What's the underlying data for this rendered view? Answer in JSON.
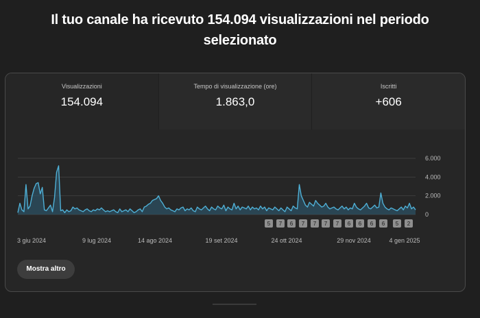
{
  "headline": "Il tuo canale ha ricevuto 154.094 visualizzazioni nel periodo selezionato",
  "metrics": [
    {
      "label": "Visualizzazioni",
      "value": "154.094"
    },
    {
      "label": "Tempo di visualizzazione (ore)",
      "value": "1.863,0"
    },
    {
      "label": "Iscritti",
      "value": "+606"
    }
  ],
  "show_more": "Mostra altro",
  "colors": {
    "line": "#4fb0d6",
    "area": "#2c5266",
    "background": "#262626",
    "grid": "#3d3d3d"
  },
  "chart_data": {
    "type": "area",
    "x_range": [
      "2024-05-31",
      "2025-01-08"
    ],
    "xticks": [
      "3 giu 2024",
      "9 lug 2024",
      "14 ago 2024",
      "19 set 2024",
      "24 ott 2024",
      "29 nov 2024",
      "4 gen 2025"
    ],
    "yticks": [
      "6.000",
      "4.000",
      "2.000",
      "0"
    ],
    "ylim": [
      0,
      6000
    ],
    "grid": true,
    "values": [
      200,
      1200,
      500,
      300,
      3200,
      600,
      900,
      2000,
      2800,
      3300,
      3400,
      2200,
      2900,
      500,
      400,
      700,
      1000,
      300,
      1800,
      4500,
      5200,
      400,
      500,
      200,
      500,
      300,
      400,
      800,
      600,
      700,
      500,
      400,
      300,
      500,
      600,
      400,
      300,
      500,
      400,
      600,
      500,
      700,
      500,
      300,
      400,
      300,
      400,
      500,
      300,
      200,
      600,
      300,
      400,
      500,
      300,
      600,
      400,
      200,
      300,
      500,
      600,
      300,
      800,
      900,
      1100,
      1200,
      1500,
      1600,
      1700,
      2000,
      1500,
      1200,
      800,
      600,
      700,
      500,
      400,
      300,
      600,
      500,
      700,
      800,
      400,
      600,
      500,
      700,
      400,
      300,
      800,
      600,
      500,
      700,
      900,
      600,
      400,
      800,
      600,
      500,
      900,
      700,
      600,
      1000,
      400,
      800,
      600,
      500,
      1200,
      600,
      900,
      500,
      800,
      700,
      600,
      900,
      500,
      800,
      600,
      700,
      500,
      900,
      600,
      800,
      400,
      700,
      600,
      500,
      800,
      600,
      400,
      700,
      500,
      300,
      800,
      600,
      400,
      900,
      700,
      600,
      3200,
      2000,
      1500,
      1000,
      800,
      1300,
      1100,
      900,
      1500,
      1200,
      1000,
      800,
      900,
      1200,
      800,
      600,
      700,
      800,
      600,
      500,
      700,
      900,
      600,
      800,
      500,
      700,
      600,
      1200,
      800,
      600,
      500,
      700,
      900,
      1200,
      700,
      600,
      800,
      1000,
      700,
      800,
      2300,
      1200,
      800,
      600,
      500,
      700,
      600,
      500,
      400,
      600,
      800,
      500,
      900,
      700,
      1200,
      600,
      800,
      500
    ],
    "markers": [
      "5",
      "7",
      "6",
      "7",
      "7",
      "7",
      "7",
      "6",
      "6",
      "6",
      "6",
      "5",
      "2"
    ]
  }
}
